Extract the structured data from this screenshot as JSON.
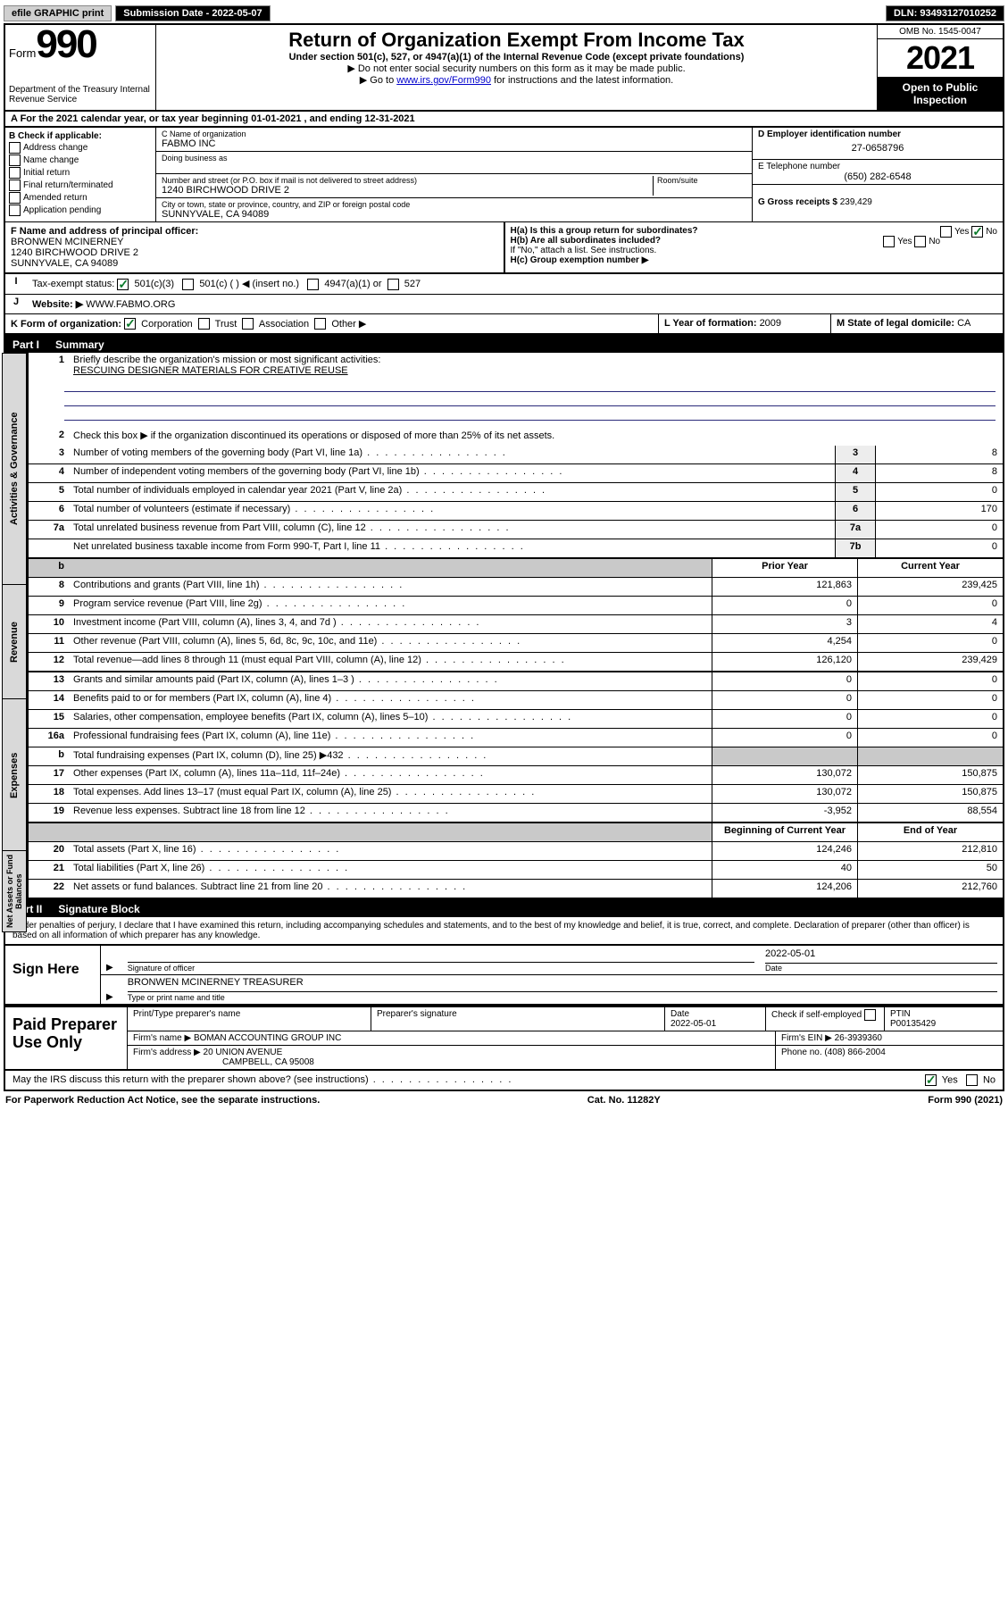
{
  "topbar": {
    "efile": "efile GRAPHIC print",
    "submission_label": "Submission Date - ",
    "submission_date": "2022-05-07",
    "dln_label": "DLN: ",
    "dln": "93493127010252"
  },
  "header": {
    "form_label": "Form",
    "form_number": "990",
    "dept": "Department of the Treasury\nInternal Revenue Service",
    "title": "Return of Organization Exempt From Income Tax",
    "subtitle": "Under section 501(c), 527, or 4947(a)(1) of the Internal Revenue Code (except private foundations)",
    "note1": "▶ Do not enter social security numbers on this form as it may be made public.",
    "note2_pre": "▶ Go to ",
    "note2_link": "www.irs.gov/Form990",
    "note2_post": " for instructions and the latest information.",
    "omb": "OMB No. 1545-0047",
    "year": "2021",
    "open": "Open to Public Inspection"
  },
  "section_a": {
    "text": "A  For the 2021 calendar year, or tax year beginning ",
    "begin": "01-01-2021",
    "mid": " , and ending ",
    "end": "12-31-2021"
  },
  "ident": {
    "b_label": "B Check if applicable:",
    "b_opts": [
      "Address change",
      "Name change",
      "Initial return",
      "Final return/terminated",
      "Amended return",
      "Application pending"
    ],
    "c_name_label": "C Name of organization",
    "c_name": "FABMO INC",
    "dba_label": "Doing business as",
    "addr_label": "Number and street (or P.O. box if mail is not delivered to street address)",
    "room_label": "Room/suite",
    "addr": "1240 BIRCHWOOD DRIVE 2",
    "city_label": "City or town, state or province, country, and ZIP or foreign postal code",
    "city": "SUNNYVALE, CA  94089",
    "d_label": "D Employer identification number",
    "d_ein": "27-0658796",
    "e_label": "E Telephone number",
    "e_phone": "(650) 282-6548",
    "g_label": "G Gross receipts $ ",
    "g_val": "239,429"
  },
  "f_block": {
    "f_label": "F Name and address of principal officer:",
    "f_name": "BRONWEN MCINERNEY",
    "f_addr": "1240 BIRCHWOOD DRIVE 2",
    "f_city": "SUNNYVALE, CA  94089"
  },
  "h_block": {
    "ha": "H(a)  Is this a group return for subordinates?",
    "hb": "H(b)  Are all subordinates included?",
    "hb_note": "If \"No,\" attach a list. See instructions.",
    "hc": "H(c)  Group exemption number ▶"
  },
  "i_row": {
    "label": "Tax-exempt status:",
    "o1": "501(c)(3)",
    "o2": "501(c) (   ) ◀ (insert no.)",
    "o3": "4947(a)(1) or",
    "o4": "527"
  },
  "j_row": {
    "label": "Website: ▶ ",
    "val": "WWW.FABMO.ORG"
  },
  "k_row": {
    "label": "K Form of organization:",
    "opts": [
      "Corporation",
      "Trust",
      "Association",
      "Other ▶"
    ]
  },
  "l_row": {
    "label": "L Year of formation: ",
    "val": "2009"
  },
  "m_row": {
    "label": "M State of legal domicile: ",
    "val": "CA"
  },
  "part1": {
    "bar": "Part I",
    "title": "Summary",
    "l1_label": "Briefly describe the organization's mission or most significant activities:",
    "l1_val": "RESCUING DESIGNER MATERIALS FOR CREATIVE REUSE",
    "l2": "Check this box ▶        if the organization discontinued its operations or disposed of more than 25% of its net assets.",
    "rows_top": [
      {
        "n": "3",
        "d": "Number of voting members of the governing body (Part VI, line 1a)",
        "k": "3",
        "v": "8"
      },
      {
        "n": "4",
        "d": "Number of independent voting members of the governing body (Part VI, line 1b)",
        "k": "4",
        "v": "8"
      },
      {
        "n": "5",
        "d": "Total number of individuals employed in calendar year 2021 (Part V, line 2a)",
        "k": "5",
        "v": "0"
      },
      {
        "n": "6",
        "d": "Total number of volunteers (estimate if necessary)",
        "k": "6",
        "v": "170"
      },
      {
        "n": "7a",
        "d": "Total unrelated business revenue from Part VIII, column (C), line 12",
        "k": "7a",
        "v": "0"
      },
      {
        "n": "",
        "d": "Net unrelated business taxable income from Form 990-T, Part I, line 11",
        "k": "7b",
        "v": "0"
      }
    ],
    "col_headers": {
      "prior": "Prior Year",
      "curr": "Current Year"
    },
    "revenue": [
      {
        "n": "8",
        "d": "Contributions and grants (Part VIII, line 1h)",
        "p": "121,863",
        "c": "239,425"
      },
      {
        "n": "9",
        "d": "Program service revenue (Part VIII, line 2g)",
        "p": "0",
        "c": "0"
      },
      {
        "n": "10",
        "d": "Investment income (Part VIII, column (A), lines 3, 4, and 7d )",
        "p": "3",
        "c": "4"
      },
      {
        "n": "11",
        "d": "Other revenue (Part VIII, column (A), lines 5, 6d, 8c, 9c, 10c, and 11e)",
        "p": "4,254",
        "c": "0"
      },
      {
        "n": "12",
        "d": "Total revenue—add lines 8 through 11 (must equal Part VIII, column (A), line 12)",
        "p": "126,120",
        "c": "239,429"
      }
    ],
    "expenses": [
      {
        "n": "13",
        "d": "Grants and similar amounts paid (Part IX, column (A), lines 1–3 )",
        "p": "0",
        "c": "0"
      },
      {
        "n": "14",
        "d": "Benefits paid to or for members (Part IX, column (A), line 4)",
        "p": "0",
        "c": "0"
      },
      {
        "n": "15",
        "d": "Salaries, other compensation, employee benefits (Part IX, column (A), lines 5–10)",
        "p": "0",
        "c": "0"
      },
      {
        "n": "16a",
        "d": "Professional fundraising fees (Part IX, column (A), line 11e)",
        "p": "0",
        "c": "0"
      },
      {
        "n": "b",
        "d": "Total fundraising expenses (Part IX, column (D), line 25) ▶432",
        "p": "",
        "c": "",
        "grey": true
      },
      {
        "n": "17",
        "d": "Other expenses (Part IX, column (A), lines 11a–11d, 11f–24e)",
        "p": "130,072",
        "c": "150,875"
      },
      {
        "n": "18",
        "d": "Total expenses. Add lines 13–17 (must equal Part IX, column (A), line 25)",
        "p": "130,072",
        "c": "150,875"
      },
      {
        "n": "19",
        "d": "Revenue less expenses. Subtract line 18 from line 12",
        "p": "-3,952",
        "c": "88,554"
      }
    ],
    "net_headers": {
      "prior": "Beginning of Current Year",
      "curr": "End of Year"
    },
    "net": [
      {
        "n": "20",
        "d": "Total assets (Part X, line 16)",
        "p": "124,246",
        "c": "212,810"
      },
      {
        "n": "21",
        "d": "Total liabilities (Part X, line 26)",
        "p": "40",
        "c": "50"
      },
      {
        "n": "22",
        "d": "Net assets or fund balances. Subtract line 21 from line 20",
        "p": "124,206",
        "c": "212,760"
      }
    ],
    "tabs": {
      "gov": "Activities & Governance",
      "rev": "Revenue",
      "exp": "Expenses",
      "net": "Net Assets or Fund Balances"
    }
  },
  "part2": {
    "bar": "Part II",
    "title": "Signature Block",
    "penalties": "Under penalties of perjury, I declare that I have examined this return, including accompanying schedules and statements, and to the best of my knowledge and belief, it is true, correct, and complete. Declaration of preparer (other than officer) is based on all information of which preparer has any knowledge.",
    "sign_here": "Sign Here",
    "sig_officer_label": "Signature of officer",
    "sig_date": "2022-05-01",
    "date_label": "Date",
    "name_title": "BRONWEN MCINERNEY  TREASURER",
    "name_title_label": "Type or print name and title"
  },
  "preparer": {
    "label": "Paid Preparer Use Only",
    "h_name": "Print/Type preparer's name",
    "h_sig": "Preparer's signature",
    "h_date": "Date",
    "h_date_val": "2022-05-01",
    "h_check": "Check        if self-employed",
    "h_ptin": "PTIN",
    "ptin": "P00135429",
    "firm_name_label": "Firm's name    ▶ ",
    "firm_name": "BOMAN ACCOUNTING GROUP INC",
    "firm_ein_label": "Firm's EIN ▶ ",
    "firm_ein": "26-3939360",
    "firm_addr_label": "Firm's address ▶ ",
    "firm_addr1": "20 UNION AVENUE",
    "firm_addr2": "CAMPBELL, CA  95008",
    "firm_phone_label": "Phone no. ",
    "firm_phone": "(408) 866-2004"
  },
  "discuss": {
    "q": "May the IRS discuss this return with the preparer shown above? (see instructions)",
    "yes": "Yes",
    "no": "No"
  },
  "footer": {
    "left": "For Paperwork Reduction Act Notice, see the separate instructions.",
    "mid": "Cat. No. 11282Y",
    "right": "Form 990 (2021)"
  },
  "colors": {
    "link": "#0000cc",
    "check": "#0a7a2a",
    "tab_bg": "#d9d9d9",
    "grey_cell": "#c9c9c9"
  }
}
